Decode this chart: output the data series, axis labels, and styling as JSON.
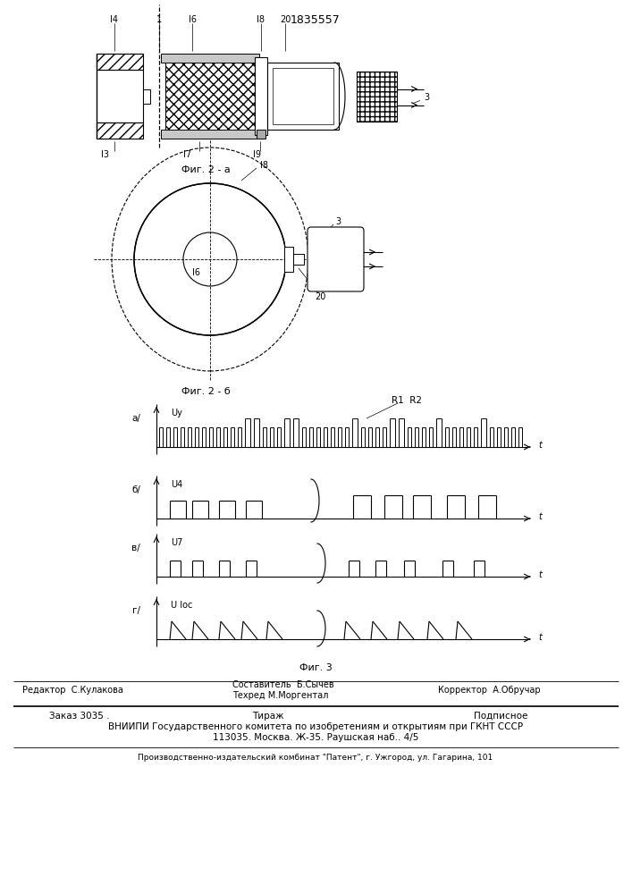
{
  "title": "1835557",
  "fig_2a_label": "Фиг. 2 - а",
  "fig_2b_label": "Фиг. 2 - б",
  "fig_3_label": "Фиг. 3",
  "bottom_text1": "Составитель  Б.Сычев",
  "bottom_text2": "Техред М.Моргентал",
  "bottom_text3": "Корректор  А.Обручар",
  "bottom_left": "Редактор  С.Кулакова",
  "footer1_a": "Заказ 3035 .",
  "footer1_b": "Тираж",
  "footer1_c": "Подписное",
  "footer2": "ВНИИПИ Государственного комитета по изобретениям и открытиям при ГКНТ СССР",
  "footer3": "113035. Москва. Ж-35. Раушская наб.. 4/5",
  "footer4": "Производственно-издательский комбинат \"Патент\", г. Ужгород, ул. Гагарина, 101"
}
